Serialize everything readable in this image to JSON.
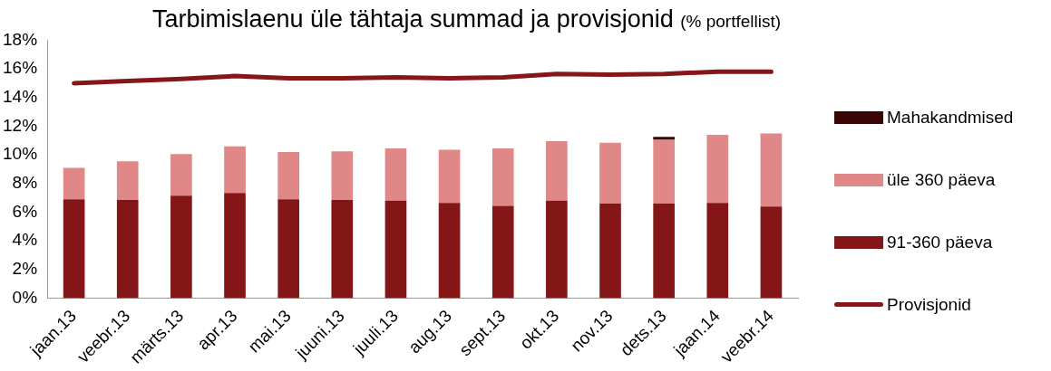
{
  "chart_data": {
    "type": "bar",
    "stacked": true,
    "title": "Tarbimislaenu üle tähtaja summad ja provisjonid",
    "subtitle": "(% portfellist)",
    "categories": [
      "jaan.13",
      "veebr.13",
      "märts.13",
      "apr.13",
      "mai.13",
      "juuni.13",
      "juuli.13",
      "aug.13",
      "sept.13",
      "okt.13",
      "nov.13",
      "dets.13",
      "jaan.14",
      "veebr.14"
    ],
    "series": [
      {
        "name": "91-360 päeva",
        "color": "#841617",
        "values": [
          6.9,
          6.85,
          7.15,
          7.35,
          6.9,
          6.85,
          6.8,
          6.65,
          6.45,
          6.8,
          6.6,
          6.6,
          6.65,
          6.4
        ]
      },
      {
        "name": "üle 360 päeva",
        "color": "#e08787",
        "values": [
          2.2,
          2.7,
          2.9,
          3.25,
          3.3,
          3.4,
          3.65,
          3.7,
          4.0,
          4.15,
          4.25,
          4.45,
          4.75,
          5.1
        ]
      },
      {
        "name": "Mahakandmised",
        "color": "#3a0505",
        "values": [
          null,
          null,
          null,
          null,
          null,
          null,
          null,
          null,
          null,
          null,
          null,
          0.2,
          null,
          null
        ]
      },
      {
        "name": "Provisjonid",
        "type": "line",
        "color": "#861618",
        "values": [
          15.0,
          15.15,
          15.3,
          15.5,
          15.35,
          15.35,
          15.4,
          15.35,
          15.4,
          15.65,
          15.6,
          15.65,
          15.8,
          15.8
        ]
      }
    ],
    "ylim": [
      0,
      18
    ],
    "yticks": [
      {
        "value": 0,
        "label": "0%"
      },
      {
        "value": 2,
        "label": "2%"
      },
      {
        "value": 4,
        "label": "4%"
      },
      {
        "value": 6,
        "label": "6%"
      },
      {
        "value": 8,
        "label": "8%"
      },
      {
        "value": 10,
        "label": "10%"
      },
      {
        "value": 12,
        "label": "12%"
      },
      {
        "value": 14,
        "label": "14%"
      },
      {
        "value": 16,
        "label": "16%"
      },
      {
        "value": 18,
        "label": "18%"
      }
    ],
    "grid": false,
    "legend": "right",
    "marker": "none"
  }
}
